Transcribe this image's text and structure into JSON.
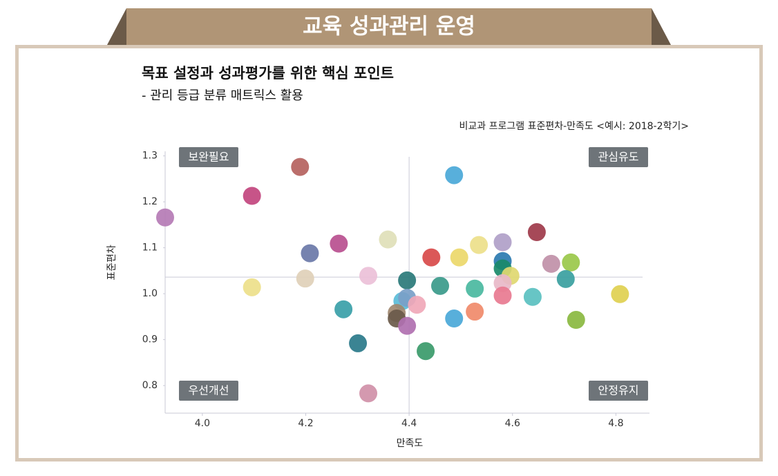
{
  "header": {
    "title": "교육 성과관리 운영"
  },
  "chart_data": {
    "type": "scatter",
    "title": "목표 설정과 성과평가를 위한 핵심 포인트",
    "subtitle": "- 관리 등급 분류 매트릭스 활용",
    "annotation": "비교과 프로그램 표준편차-만족도 <예시: 2018-2학기>",
    "x_label": "만족도",
    "y_label": "표준편차",
    "quadrant_labels": {
      "top_left": "보완필요",
      "top_right": "관심유도",
      "bottom_left": "우선개선",
      "bottom_right": "안정유지"
    },
    "reference_x": 4.4,
    "reference_y": 1.036,
    "xlim": [
      3.928,
      4.865
    ],
    "ylim": [
      0.74,
      1.31
    ],
    "xticks": [
      {
        "value": 4,
        "label": "4.0"
      },
      4.2,
      4.4,
      4.6,
      4.8
    ],
    "yticks": [
      0.8,
      0.9,
      {
        "value": 1,
        "label": "1.0"
      },
      1.1,
      1.2,
      1.3
    ],
    "x": [
      3.928,
      4.096,
      4.189,
      4.487,
      4.208,
      4.264,
      4.359,
      4.443,
      4.497,
      4.535,
      4.581,
      4.647,
      4.581,
      4.581,
      4.596,
      4.675,
      4.713,
      4.703,
      4.096,
      4.199,
      4.321,
      4.396,
      4.46,
      4.527,
      4.581,
      4.581,
      4.639,
      4.808,
      4.273,
      4.387,
      4.396,
      4.415,
      4.376,
      4.376,
      4.396,
      4.487,
      4.527,
      4.723,
      4.301,
      4.432,
      4.321
    ],
    "values": [
      1.166,
      1.213,
      1.276,
      1.258,
      1.088,
      1.109,
      1.118,
      1.079,
      1.079,
      1.106,
      1.112,
      1.134,
      1.071,
      1.055,
      1.039,
      1.065,
      1.068,
      1.032,
      1.014,
      1.033,
      1.039,
      1.029,
      1.017,
      1.011,
      1.023,
      0.996,
      0.993,
      0.999,
      0.966,
      0.984,
      0.991,
      0.976,
      0.958,
      0.946,
      0.93,
      0.946,
      0.961,
      0.943,
      0.892,
      0.875,
      0.783
    ],
    "colors": [
      "#b57bb5",
      "#c2457e",
      "#b5625e",
      "#4aa8d8",
      "#6a78a8",
      "#b84f8f",
      "#e0e0b8",
      "#d84a4a",
      "#ecd86a",
      "#ede08a",
      "#b0a0c8",
      "#9e3a4a",
      "#2a7ab0",
      "#1a8a6a",
      "#e0d870",
      "#c090a8",
      "#9ac84a",
      "#3aa0a0",
      "#ede08a",
      "#e0d0b8",
      "#ecc0d8",
      "#2a7a7a",
      "#3a9a8a",
      "#4ab8a0",
      "#e8b8c8",
      "#e87a90",
      "#5ac0c0",
      "#e0d050",
      "#3aa0a8",
      "#5abcd8",
      "#7aa0c8",
      "#f0a8b8",
      "#a08870",
      "#6a5a4a",
      "#b070b0",
      "#4aa8d8",
      "#f08a6a",
      "#8ab840",
      "#2a7a8a",
      "#3a9a6a",
      "#d090a8"
    ]
  }
}
